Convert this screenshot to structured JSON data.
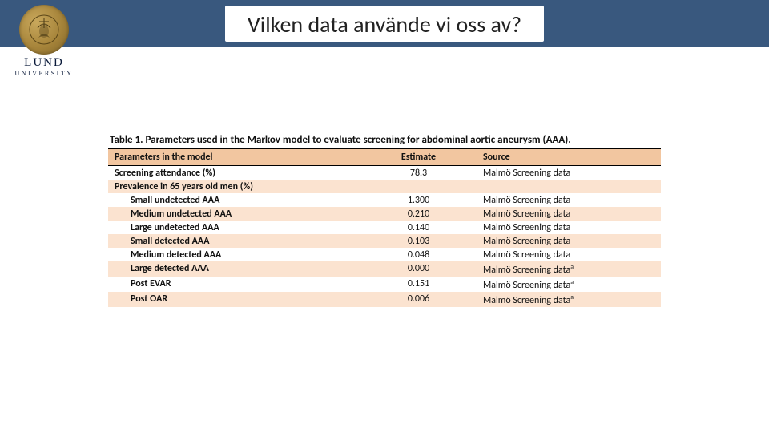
{
  "header": {
    "title": "Vilken data använde vi oss av?",
    "bar_color": "#39587e"
  },
  "logo": {
    "name": "LUND",
    "sub": "UNIVERSITY"
  },
  "table": {
    "caption_prefix": "Table 1.",
    "caption_text": "Parameters used in the Markov model to evaluate screening for abdominal aortic aneurysm (AAA).",
    "columns": [
      "Parameters in the model",
      "Estimate",
      "Source"
    ],
    "rows": [
      {
        "param": "Screening attendance (%)",
        "indent": false,
        "estimate": "78.3",
        "source": "Malmö Screening data",
        "sup": "",
        "stripe": false
      },
      {
        "param": "Prevalence in 65 years old men (%)",
        "indent": false,
        "estimate": "",
        "source": "",
        "sup": "",
        "stripe": true
      },
      {
        "param": "Small undetected AAA",
        "indent": true,
        "estimate": "1.300",
        "source": "Malmö Screening data",
        "sup": "",
        "stripe": false
      },
      {
        "param": "Medium undetected AAA",
        "indent": true,
        "estimate": "0.210",
        "source": "Malmö Screening data",
        "sup": "",
        "stripe": true
      },
      {
        "param": "Large undetected AAA",
        "indent": true,
        "estimate": "0.140",
        "source": "Malmö Screening data",
        "sup": "",
        "stripe": false
      },
      {
        "param": "Small detected AAA",
        "indent": true,
        "estimate": "0.103",
        "source": "Malmö Screening data",
        "sup": "",
        "stripe": true
      },
      {
        "param": "Medium detected AAA",
        "indent": true,
        "estimate": "0.048",
        "source": "Malmö Screening data",
        "sup": "",
        "stripe": false
      },
      {
        "param": "Large detected AAA",
        "indent": true,
        "estimate": "0.000",
        "source": "Malmö Screening data",
        "sup": "a",
        "stripe": true
      },
      {
        "param": "Post EVAR",
        "indent": true,
        "estimate": "0.151",
        "source": "Malmö Screening data",
        "sup": "a",
        "stripe": false
      },
      {
        "param": "Post OAR",
        "indent": true,
        "estimate": "0.006",
        "source": "Malmö Screening data",
        "sup": "a",
        "stripe": true
      }
    ],
    "colors": {
      "header_bg": "#f2c6a0",
      "stripe_bg": "#fbe3d0",
      "text": "#111111",
      "border": "#000000"
    }
  }
}
